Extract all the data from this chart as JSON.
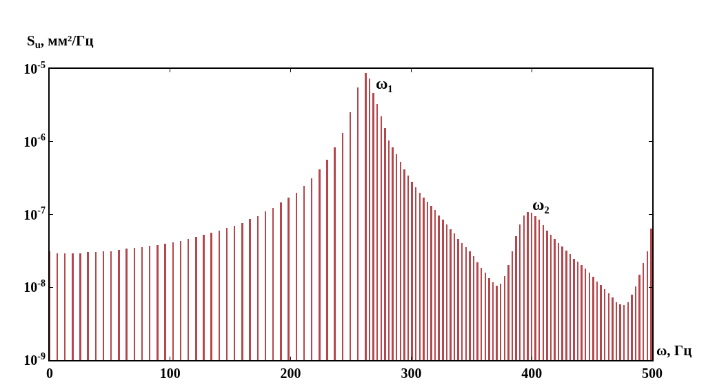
{
  "chart_data": {
    "type": "bar",
    "xlabel": "ω, Гц",
    "ylabel": "S$_{u}$, мм²/Гц",
    "x": [
      0,
      6.4,
      12.8,
      19.2,
      25.6,
      32,
      38.4,
      44.8,
      51.2,
      57.6,
      64,
      70.4,
      76.8,
      83.2,
      89.6,
      96,
      102.4,
      108.8,
      115.2,
      121.6,
      128,
      134.4,
      140.8,
      147.2,
      153.6,
      160,
      166.4,
      172.8,
      179.2,
      185.6,
      192,
      198.4,
      204.8,
      211.2,
      217.6,
      224,
      230.4,
      236.8,
      243.2,
      249.6,
      256,
      262.4,
      265.6,
      268.8,
      272,
      275.2,
      278.4,
      281.6,
      284.8,
      288,
      291.2,
      294.4,
      297.6,
      300.8,
      304,
      307.2,
      310.4,
      313.6,
      316.8,
      320,
      323.2,
      326.4,
      329.6,
      332.8,
      336,
      339.2,
      342.4,
      345.6,
      348.8,
      352,
      355.2,
      358.4,
      361.6,
      364.8,
      368,
      371.2,
      374.4,
      377.6,
      380.8,
      384,
      387.2,
      390.4,
      393.6,
      396.8,
      400,
      403.2,
      406.4,
      409.6,
      412.8,
      416,
      419.2,
      422.4,
      425.6,
      428.8,
      432,
      435.2,
      438.4,
      441.6,
      444.8,
      448,
      451.2,
      454.4,
      457.6,
      460.8,
      464,
      467.2,
      470.4,
      473.6,
      476.8,
      480,
      483.2,
      486.4,
      489.6,
      492.8,
      496,
      499.2
    ],
    "values": [
      3.1e-08,
      2.95e-08,
      2.95e-08,
      2.95e-08,
      2.95e-08,
      3.03e-08,
      3.03e-08,
      3.13e-08,
      3.13e-08,
      3.24e-08,
      3.37e-08,
      3.46e-08,
      3.58e-08,
      3.7e-08,
      3.83e-08,
      3.96e-08,
      4.17e-08,
      4.32e-08,
      4.58e-08,
      4.9e-08,
      5.24e-08,
      5.6e-08,
      6.03e-08,
      6.53e-08,
      7.02e-08,
      7.66e-08,
      8.69e-08,
      9.55e-08,
      1.1e-07,
      1.24e-07,
      1.45e-07,
      1.69e-07,
      1.99e-07,
      2.49e-07,
      3.15e-07,
      4.14e-07,
      5.68e-07,
      8.35e-07,
      1.33e-06,
      2.56e-06,
      5.52e-06,
      8.7e-06,
      7.36e-06,
      4.7e-06,
      3.3e-06,
      2.21e-06,
      1.53e-06,
      1.04e-06,
      8.4e-07,
      6.65e-07,
      5.27e-07,
      4.17e-07,
      3.41e-07,
      2.79e-07,
      2.37e-07,
      2e-07,
      1.69e-07,
      1.48e-07,
      1.3e-07,
      1.14e-07,
      9.62e-08,
      8.41e-08,
      7.36e-08,
      6.22e-08,
      5.44e-08,
      4.61e-08,
      4.04e-08,
      3.53e-08,
      3.09e-08,
      2.7e-08,
      2.21e-08,
      1.87e-08,
      1.58e-08,
      1.34e-08,
      1.17e-08,
      1.06e-08,
      1.13e-08,
      1.41e-08,
      2e-08,
      3.15e-08,
      5.09e-08,
      7.36e-08,
      9.62e-08,
      1.08e-07,
      1.06e-07,
      9.42e-08,
      8.41e-08,
      7.11e-08,
      6.03e-08,
      5.27e-08,
      4.61e-08,
      4.04e-08,
      3.6e-08,
      3.19e-08,
      2.83e-08,
      2.48e-08,
      2.24e-08,
      2e-08,
      1.81e-08,
      1.58e-08,
      1.39e-08,
      1.21e-08,
      1.08e-08,
      9.4e-09,
      8.2e-09,
      7.2e-09,
      6.2e-09,
      5.8e-09,
      5.7e-09,
      6.2e-09,
      7.9e-09,
      1.03e-08,
      1.48e-08,
      2.14e-08,
      3.09e-08,
      6.44e-08
    ],
    "color": "#b5474c",
    "log": "y",
    "xlim": [
      0,
      500
    ],
    "xticks": [
      0,
      100,
      200,
      300,
      400,
      500
    ],
    "ylim": [
      1e-09,
      1e-05
    ],
    "yticks": [
      {
        "value": 1e-09,
        "label": "10$^{-9}$"
      },
      {
        "value": 1e-08,
        "label": "10$^{-8}$"
      },
      {
        "value": 1e-07,
        "label": "10$^{-7}$"
      },
      {
        "value": 1e-06,
        "label": "10$^{-6}$"
      },
      {
        "value": 1e-05,
        "label": "10$^{-5}$"
      }
    ],
    "annotations": [
      {
        "text": "ω₁",
        "x": 262.4,
        "y": 8.7e-06
      },
      {
        "text": "ω₂",
        "x": 396.8,
        "y": 1.08e-07
      }
    ]
  }
}
